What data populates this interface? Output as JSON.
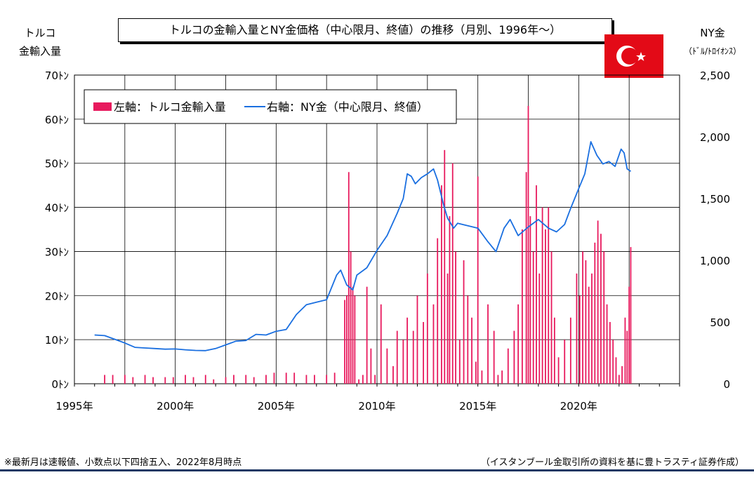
{
  "title": "トルコの金輸入量とNY金価格（中心限月、終値）の推移（月別、1996年～）",
  "left_axis_title": [
    "トルコ",
    "金輸入量"
  ],
  "right_axis_title": [
    "NY金",
    "（ﾄﾞﾙ/ﾄﾛｲｵﾝｽ）"
  ],
  "footnote": "※最新月は速報値、小数点以下四捨五入、2022年8月時点",
  "source": "（イスタンブール金取引所の資料を基に豊トラスティ証券作成）",
  "colors": {
    "bar": "#e8195d",
    "line": "#1a6fe0",
    "flag_red": "#e30a17",
    "rule": "#1f3864"
  },
  "flag_icon": "turkey-flag-icon",
  "chart_data": {
    "type": "bar+line",
    "x_range": [
      1995,
      2025
    ],
    "x_ticks": [
      1995,
      2000,
      2005,
      2010,
      2015,
      2020
    ],
    "x_tick_labels": [
      "1995年",
      "2000年",
      "2005年",
      "2010年",
      "2015年",
      "2020年"
    ],
    "left_axis": {
      "range": [
        0,
        70
      ],
      "ticks": [
        0,
        10,
        20,
        30,
        40,
        50,
        60,
        70
      ],
      "tick_labels": [
        "0ﾄﾝ",
        "10ﾄﾝ",
        "20ﾄﾝ",
        "30ﾄﾝ",
        "40ﾄﾝ",
        "50ﾄﾝ",
        "60ﾄﾝ",
        "70ﾄﾝ"
      ]
    },
    "right_axis": {
      "range": [
        0,
        2500
      ],
      "ticks": [
        0,
        500,
        1000,
        1500,
        2000,
        2500
      ],
      "tick_labels": [
        "0",
        "500",
        "1,000",
        "1,500",
        "2,000",
        "2,500"
      ]
    },
    "grid": true,
    "legend": {
      "placement": "top-left",
      "items": [
        "左軸：トルコ金輸入量",
        "右軸：NY金（中心限月、終値）"
      ]
    },
    "series": [
      {
        "name": "左軸：トルコ金輸入量",
        "type": "bar",
        "axis": "left",
        "x": [
          1996.5,
          1996.9,
          1997.5,
          1997.9,
          1998.5,
          1998.9,
          1999.5,
          1999.9,
          2000.5,
          2000.9,
          2001.5,
          2001.9,
          2002.5,
          2002.9,
          2003.5,
          2003.9,
          2004.5,
          2004.9,
          2005.5,
          2005.9,
          2006.5,
          2006.9,
          2007.5,
          2007.9,
          2008.4,
          2008.5,
          2008.6,
          2008.7,
          2008.8,
          2008.9,
          2009.1,
          2009.3,
          2009.5,
          2009.7,
          2009.9,
          2010.2,
          2010.5,
          2010.8,
          2011.0,
          2011.3,
          2011.5,
          2011.8,
          2012.0,
          2012.3,
          2012.5,
          2012.8,
          2013.0,
          2013.2,
          2013.35,
          2013.5,
          2013.6,
          2013.75,
          2013.9,
          2014.1,
          2014.3,
          2014.5,
          2014.7,
          2014.9,
          2015.0,
          2015.2,
          2015.5,
          2015.8,
          2016.0,
          2016.2,
          2016.5,
          2016.8,
          2017.0,
          2017.2,
          2017.4,
          2017.5,
          2017.6,
          2017.75,
          2017.9,
          2018.05,
          2018.2,
          2018.35,
          2018.5,
          2018.65,
          2018.8,
          2019.0,
          2019.3,
          2019.6,
          2019.9,
          2020.05,
          2020.2,
          2020.35,
          2020.5,
          2020.65,
          2020.8,
          2020.95,
          2021.1,
          2021.25,
          2021.4,
          2021.55,
          2021.7,
          2021.85,
          2022.0,
          2022.15,
          2022.3,
          2022.4,
          2022.5,
          2022.58
        ],
        "values": [
          2,
          2,
          2,
          1.5,
          2,
          1.5,
          1.5,
          1.5,
          2,
          1.5,
          2,
          1,
          1.5,
          2,
          2,
          1.5,
          2,
          2.5,
          2.5,
          2.5,
          2,
          2,
          2,
          2.5,
          19,
          20,
          48,
          30,
          22,
          20,
          1,
          2,
          22,
          8,
          2,
          18,
          8,
          4,
          12,
          10,
          15,
          12,
          20,
          14,
          25,
          18,
          33,
          45,
          53,
          25,
          38,
          50,
          30,
          10,
          28,
          20,
          15,
          5,
          47,
          3,
          18,
          12,
          2,
          3,
          8,
          12,
          18,
          35,
          48,
          63,
          38,
          30,
          45,
          25,
          40,
          35,
          40,
          30,
          15,
          6,
          10,
          15,
          25,
          20,
          30,
          28,
          22,
          25,
          32,
          37,
          34,
          30,
          18,
          14,
          10,
          6,
          2,
          4,
          15,
          12,
          22,
          31
        ]
      },
      {
        "name": "右軸：NY金（中心限月、終値）",
        "type": "line",
        "axis": "right",
        "x": [
          1996.0,
          1996.5,
          1997.0,
          1997.5,
          1998.0,
          1998.5,
          1999.0,
          1999.5,
          2000.0,
          2000.5,
          2001.0,
          2001.5,
          2002.0,
          2002.5,
          2003.0,
          2003.5,
          2004.0,
          2004.5,
          2005.0,
          2005.5,
          2006.0,
          2006.5,
          2007.0,
          2007.5,
          2008.0,
          2008.2,
          2008.5,
          2008.8,
          2009.0,
          2009.5,
          2010.0,
          2010.5,
          2011.0,
          2011.3,
          2011.5,
          2011.7,
          2011.9,
          2012.2,
          2012.5,
          2012.8,
          2013.0,
          2013.3,
          2013.5,
          2013.8,
          2014.0,
          2014.5,
          2015.0,
          2015.5,
          2015.9,
          2016.3,
          2016.6,
          2017.0,
          2017.5,
          2018.0,
          2018.5,
          2018.9,
          2019.3,
          2019.6,
          2020.0,
          2020.3,
          2020.6,
          2020.9,
          2021.2,
          2021.5,
          2021.8,
          2022.1,
          2022.25,
          2022.4,
          2022.58
        ],
        "values": [
          395,
          390,
          360,
          330,
          295,
          290,
          285,
          280,
          282,
          275,
          270,
          268,
          285,
          315,
          345,
          350,
          400,
          395,
          425,
          440,
          560,
          640,
          660,
          680,
          880,
          920,
          800,
          760,
          880,
          940,
          1080,
          1200,
          1380,
          1500,
          1700,
          1680,
          1620,
          1670,
          1700,
          1740,
          1650,
          1450,
          1340,
          1260,
          1300,
          1280,
          1260,
          1150,
          1070,
          1260,
          1330,
          1200,
          1270,
          1330,
          1260,
          1230,
          1290,
          1420,
          1580,
          1700,
          1960,
          1850,
          1780,
          1800,
          1760,
          1900,
          1870,
          1740,
          1720
        ]
      }
    ]
  }
}
